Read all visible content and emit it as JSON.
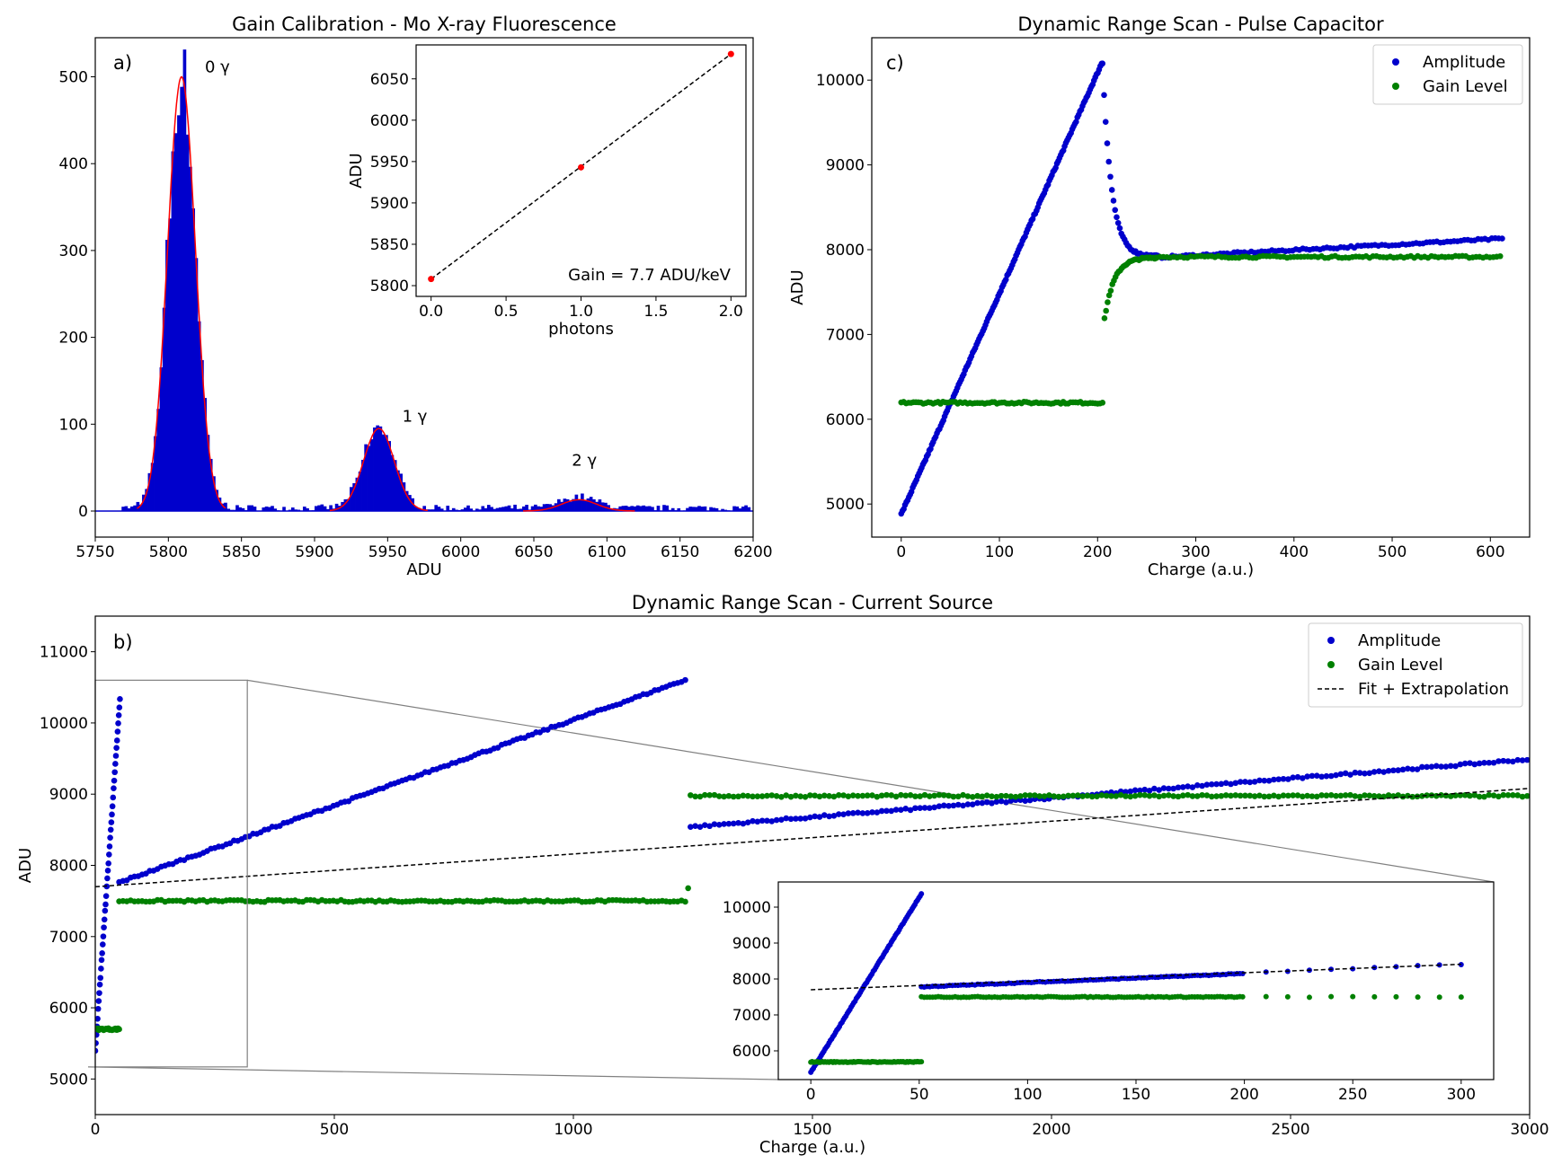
{
  "chart_data": [
    {
      "id": "a",
      "type": "histogram",
      "title": "Gain Calibration - Mo X-ray Fluorescence",
      "panel_label": "a)",
      "xlabel": "ADU",
      "ylabel": "",
      "xlim": [
        5750,
        6200
      ],
      "ylim": [
        -30,
        545
      ],
      "xticks": [
        5750,
        5800,
        5850,
        5900,
        5950,
        6000,
        6050,
        6100,
        6150,
        6200
      ],
      "yticks": [
        0,
        100,
        200,
        300,
        400,
        500
      ],
      "bar_color": "#0000cc",
      "fit_color": "#ff0000",
      "peaks": [
        {
          "label": "0 γ",
          "center": 5809,
          "amplitude": 500,
          "sigma": 9.5,
          "label_x": 5825,
          "label_y": 505
        },
        {
          "label": "1 γ",
          "center": 5944,
          "amplitude": 95,
          "sigma": 10.5,
          "label_x": 5960,
          "label_y": 103
        },
        {
          "label": "2 γ",
          "center": 6081,
          "amplitude": 13,
          "sigma": 12,
          "label_x": 6076,
          "label_y": 52
        }
      ],
      "background_level": 3.5,
      "inset": {
        "type": "scatter",
        "xlabel": "photons",
        "ylabel": "ADU",
        "xlim": [
          -0.1,
          2.1
        ],
        "ylim": [
          5787,
          6091
        ],
        "xticks": [
          0.0,
          0.5,
          1.0,
          1.5,
          2.0
        ],
        "xtick_labels": [
          "0.0",
          "0.5",
          "1.0",
          "1.5",
          "2.0"
        ],
        "yticks": [
          5800,
          5850,
          5900,
          5950,
          6000,
          6050
        ],
        "points": [
          [
            0,
            5808
          ],
          [
            1,
            5943
          ],
          [
            2,
            6080
          ]
        ],
        "fit_line": [
          [
            0,
            5808
          ],
          [
            2,
            6080
          ]
        ],
        "annotation": "Gain = 7.7 ADU/keV",
        "point_color": "#ff0000"
      }
    },
    {
      "id": "c",
      "type": "scatter",
      "title": "Dynamic Range Scan - Pulse Capacitor",
      "panel_label": "c)",
      "xlabel": "Charge (a.u.)",
      "ylabel": "ADU",
      "xlim": [
        -30,
        640
      ],
      "ylim": [
        4610,
        10500
      ],
      "xticks": [
        0,
        100,
        200,
        300,
        400,
        500,
        600
      ],
      "yticks": [
        5000,
        6000,
        7000,
        8000,
        9000,
        10000
      ],
      "legend": {
        "position": "top-right",
        "entries": [
          "Amplitude",
          "Gain Level"
        ]
      },
      "series": [
        {
          "name": "Amplitude",
          "color": "#0000cc",
          "segments": [
            {
              "kind": "linear",
              "x0": 0,
              "x1": 205,
              "y0": 4880,
              "y1": 10220,
              "step": 1.3
            },
            {
              "kind": "decay",
              "x0": 205,
              "x1": 262,
              "y_start": 10200,
              "y_end": 7920,
              "tau": 9,
              "step": 1.6
            },
            {
              "kind": "linear",
              "x0": 262,
              "x1": 612,
              "y0": 7910,
              "y1": 8130,
              "step": 3.5
            }
          ]
        },
        {
          "name": "Gain Level",
          "color": "#008000",
          "segments": [
            {
              "kind": "flat",
              "x0": 0,
              "x1": 205,
              "y": 6195,
              "step": 2.5
            },
            {
              "kind": "rise",
              "x0": 207,
              "x1": 260,
              "y_start": 7180,
              "y_end": 7910,
              "tau": 10,
              "step": 1.6
            },
            {
              "kind": "flat",
              "x0": 260,
              "x1": 612,
              "y": 7915,
              "step": 3.5
            }
          ]
        }
      ]
    },
    {
      "id": "b",
      "type": "scatter",
      "title": "Dynamic Range Scan - Current Source",
      "panel_label": "b)",
      "xlabel": "Charge (a.u.)",
      "ylabel": "ADU",
      "xlim": [
        0,
        3000
      ],
      "ylim": [
        4500,
        11500
      ],
      "xticks": [
        0,
        500,
        1000,
        1500,
        2000,
        2500,
        3000
      ],
      "yticks": [
        5000,
        6000,
        7000,
        8000,
        9000,
        10000,
        11000
      ],
      "legend": {
        "position": "top-right",
        "entries": [
          "Amplitude",
          "Gain Level",
          "Fit + Extrapolation"
        ]
      },
      "series": [
        {
          "name": "Amplitude",
          "color": "#0000cc",
          "segments": [
            {
              "kind": "linear",
              "x0": 0,
              "x1": 52,
              "y0": 5400,
              "y1": 10370,
              "step": 1.2
            },
            {
              "kind": "linear",
              "x0": 50,
              "x1": 1240,
              "y0": 7760,
              "y1": 10620,
              "step": 8
            },
            {
              "kind": "linear",
              "x0": 1245,
              "x1": 3000,
              "y0": 8540,
              "y1": 9490,
              "step": 10
            }
          ]
        },
        {
          "name": "Gain Level",
          "color": "#008000",
          "segments": [
            {
              "kind": "flat",
              "x0": 0,
              "x1": 52,
              "y": 5700,
              "step": 2.5
            },
            {
              "kind": "flat",
              "x0": 50,
              "x1": 1235,
              "y": 7500,
              "step": 8
            },
            {
              "kind": "single",
              "x": 1240,
              "y": 7680
            },
            {
              "kind": "flat",
              "x0": 1245,
              "x1": 3000,
              "y": 8975,
              "step": 10
            }
          ]
        },
        {
          "name": "Fit + Extrapolation",
          "style": "dashed",
          "color": "#000000",
          "line": [
            [
              0,
              7700
            ],
            [
              3000,
              9080
            ]
          ]
        }
      ],
      "zoom_rect": {
        "x0": 0,
        "x1": 318,
        "y0": 5170,
        "y1": 10600
      },
      "inset": {
        "xlim": [
          -15,
          315
        ],
        "ylim": [
          5200,
          10700
        ],
        "xticks": [
          0,
          50,
          100,
          150,
          200,
          250,
          300
        ],
        "yticks": [
          6000,
          7000,
          8000,
          9000,
          10000
        ],
        "series": [
          {
            "name": "Amplitude",
            "color": "#0000cc",
            "segments": [
              {
                "kind": "linear",
                "x0": 0,
                "x1": 51,
                "y0": 5400,
                "y1": 10370,
                "step": 0.6
              },
              {
                "kind": "linear",
                "x0": 51,
                "x1": 200,
                "y0": 7780,
                "y1": 8150,
                "step": 1.3
              },
              {
                "kind": "linear",
                "x0": 210,
                "x1": 300,
                "y0": 8190,
                "y1": 8410,
                "step": 10
              }
            ]
          },
          {
            "name": "Gain Level",
            "color": "#008000",
            "segments": [
              {
                "kind": "flat",
                "x0": 0,
                "x1": 51,
                "y": 5690,
                "step": 0.6
              },
              {
                "kind": "flat",
                "x0": 51,
                "x1": 200,
                "y": 7500,
                "step": 1.3
              },
              {
                "kind": "flat",
                "x0": 210,
                "x1": 300,
                "y": 7500,
                "step": 10
              }
            ]
          },
          {
            "name": "Fit + Extrapolation",
            "style": "dashed",
            "color": "#000000",
            "line": [
              [
                0,
                7700
              ],
              [
                300,
                8410
              ]
            ]
          }
        ]
      }
    }
  ]
}
